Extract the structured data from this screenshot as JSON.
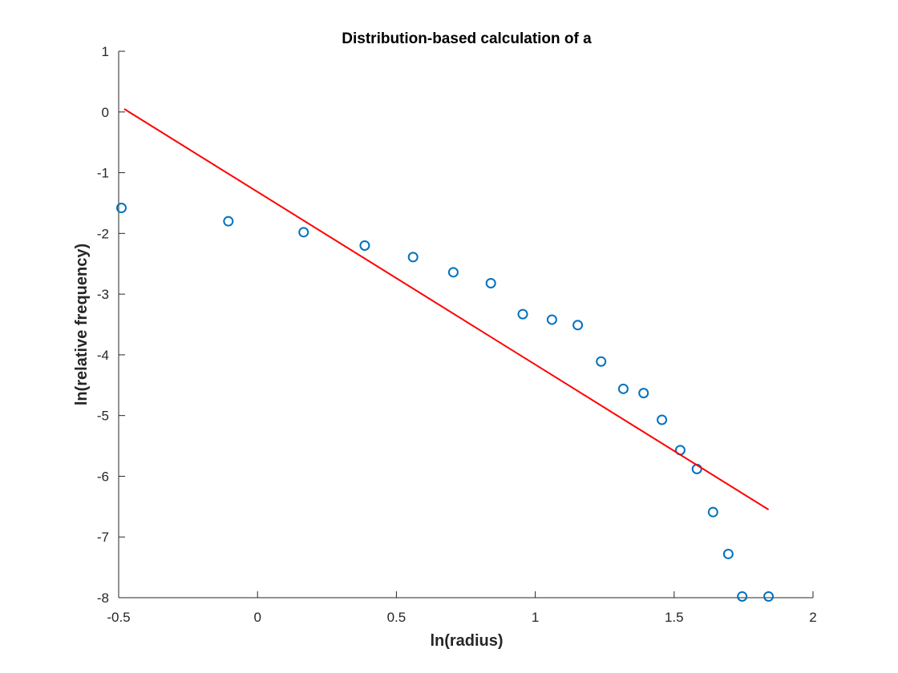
{
  "chart_data": {
    "type": "scatter",
    "title": "Distribution-based calculation of a",
    "xlabel": "ln(radius)",
    "ylabel": "ln(relative frequency)",
    "xlim": [
      -0.5,
      2
    ],
    "ylim": [
      -8,
      1
    ],
    "xticks": [
      -0.5,
      0,
      0.5,
      1,
      1.5,
      2
    ],
    "xtick_labels": [
      "-0.5",
      "0",
      "0.5",
      "1",
      "1.5",
      "2"
    ],
    "yticks": [
      1,
      0,
      -1,
      -2,
      -3,
      -4,
      -5,
      -6,
      -7,
      -8
    ],
    "ytick_labels": [
      "1",
      "0",
      "-1",
      "-2",
      "-3",
      "-4",
      "-5",
      "-6",
      "-7",
      "-8"
    ],
    "grid": false,
    "series": [
      {
        "type": "scatter",
        "marker": "circle-open",
        "color": "#0072BD",
        "x": [
          -0.49,
          -0.105,
          0.166,
          0.386,
          0.56,
          0.705,
          0.84,
          0.955,
          1.06,
          1.153,
          1.237,
          1.317,
          1.39,
          1.456,
          1.522,
          1.582,
          1.64,
          1.695,
          1.745,
          1.84
        ],
        "y": [
          -1.58,
          -1.8,
          -1.98,
          -2.2,
          -2.39,
          -2.64,
          -2.82,
          -3.33,
          -3.42,
          -3.51,
          -4.11,
          -4.56,
          -4.63,
          -5.07,
          -5.57,
          -5.88,
          -6.59,
          -7.28,
          -7.98,
          -7.98
        ]
      },
      {
        "type": "line",
        "color": "#FF0000",
        "x": [
          -0.48,
          1.84
        ],
        "y": [
          0.05,
          -6.55
        ]
      }
    ]
  }
}
